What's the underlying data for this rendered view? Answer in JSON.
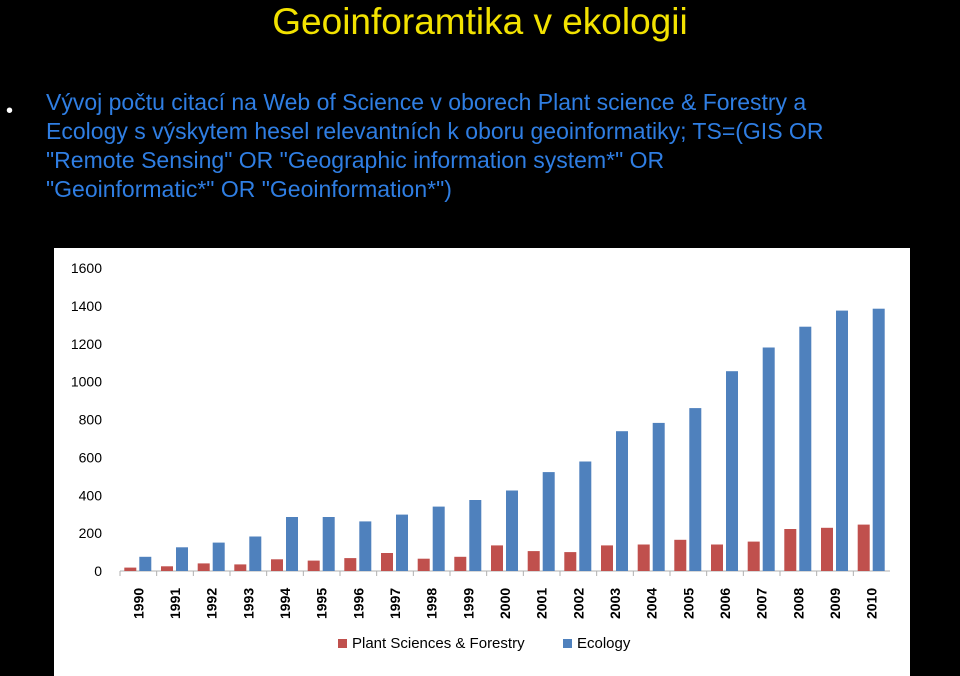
{
  "slide": {
    "title": "Geoinforamtika v ekologii",
    "bullet_lines": [
      "Vývoj počtu citací na Web of Science v oborech Plant science & Forestry a",
      "Ecology s výskytem hesel relevantních k oboru geoinformatiky; TS=(GIS OR",
      "\"Remote Sensing\" OR \"Geographic information system*\" OR",
      "\"Geoinformatic*\" OR \"Geoinformation*\")"
    ]
  },
  "colors": {
    "background": "#000000",
    "title": "#f2e200",
    "bullet_text": "#2f7ee3",
    "plant_series": "#c0504d",
    "ecology_series": "#4f81bd"
  },
  "chart_data": {
    "type": "bar",
    "categories": [
      "1990",
      "1991",
      "1992",
      "1993",
      "1994",
      "1995",
      "1996",
      "1997",
      "1998",
      "1999",
      "2000",
      "2001",
      "2002",
      "2003",
      "2004",
      "2005",
      "2006",
      "2007",
      "2008",
      "2009",
      "2010"
    ],
    "series": [
      {
        "name": "Plant Sciences & Forestry",
        "color": "#c0504d",
        "values": [
          18,
          25,
          40,
          35,
          62,
          55,
          68,
          95,
          65,
          75,
          135,
          105,
          100,
          135,
          140,
          165,
          140,
          155,
          222,
          228,
          245
        ]
      },
      {
        "name": "Ecology",
        "color": "#4f81bd",
        "values": [
          75,
          125,
          150,
          182,
          285,
          285,
          262,
          298,
          340,
          375,
          425,
          522,
          578,
          738,
          782,
          860,
          1055,
          1180,
          1290,
          1375,
          1385
        ]
      }
    ],
    "yticks": [
      "0",
      "200",
      "400",
      "600",
      "800",
      "1000",
      "1200",
      "1400",
      "1600"
    ],
    "ylim": [
      0,
      1600
    ],
    "grid": false,
    "legend_position": "bottom"
  }
}
